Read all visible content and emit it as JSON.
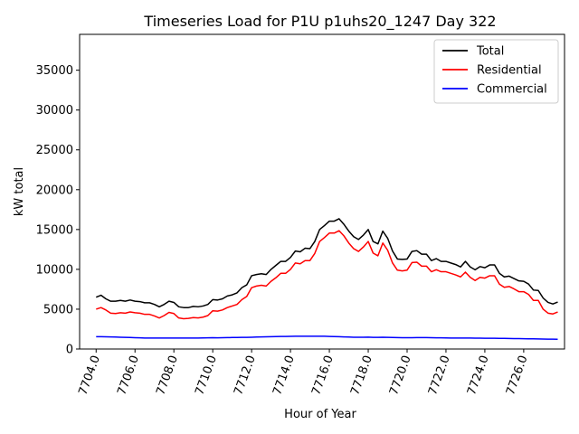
{
  "chart_data": {
    "type": "line",
    "title": "Timeseries Load for P1U p1uhs20_1247  Day 322",
    "xlabel": "Hour of Year",
    "ylabel": "kW total",
    "xlim": [
      7703.15,
      7728.1
    ],
    "ylim": [
      0,
      39500
    ],
    "xticks": [
      7704,
      7706,
      7708,
      7710,
      7712,
      7714,
      7716,
      7718,
      7720,
      7722,
      7724,
      7726
    ],
    "xtick_labels": [
      "7704.0",
      "7706.0",
      "7708.0",
      "7710.0",
      "7712.0",
      "7714.0",
      "7716.0",
      "7718.0",
      "7720.0",
      "7722.0",
      "7724.0",
      "7726.0"
    ],
    "yticks": [
      0,
      5000,
      10000,
      15000,
      20000,
      25000,
      30000,
      35000
    ],
    "ytick_labels": [
      "0",
      "5000",
      "10000",
      "15000",
      "20000",
      "25000",
      "30000",
      "35000"
    ],
    "legend_position": "top-right",
    "x_start": 7704.0,
    "x_step": 0.25,
    "series": [
      {
        "name": "Total",
        "color": "#000000",
        "values": [
          6500,
          6750,
          6300,
          6000,
          6000,
          6100,
          6000,
          6150,
          6000,
          5950,
          5800,
          5800,
          5600,
          5300,
          5600,
          6000,
          5850,
          5300,
          5200,
          5200,
          5350,
          5300,
          5400,
          5600,
          6200,
          6150,
          6300,
          6650,
          6800,
          7050,
          7700,
          8050,
          9200,
          9350,
          9450,
          9350,
          10000,
          10500,
          11000,
          11000,
          11500,
          12300,
          12200,
          12650,
          12600,
          13500,
          15000,
          15500,
          16050,
          16050,
          16350,
          15650,
          14800,
          14100,
          13750,
          14300,
          15000,
          13500,
          13200,
          14800,
          13900,
          12300,
          11300,
          11250,
          11300,
          12250,
          12350,
          11900,
          11900,
          11100,
          11350,
          11000,
          11000,
          10800,
          10600,
          10300,
          11000,
          10300,
          9950,
          10350,
          10200,
          10550,
          10550,
          9500,
          9050,
          9150,
          8850,
          8550,
          8500,
          8150,
          7400,
          7350,
          6400,
          5850,
          5650,
          5900
        ]
      },
      {
        "name": "Residential",
        "color": "#ff0000",
        "values": [
          5000,
          5200,
          4900,
          4500,
          4450,
          4550,
          4500,
          4650,
          4550,
          4500,
          4350,
          4350,
          4150,
          3900,
          4200,
          4600,
          4450,
          3900,
          3800,
          3850,
          3950,
          3900,
          4000,
          4200,
          4800,
          4750,
          4900,
          5200,
          5400,
          5600,
          6200,
          6600,
          7700,
          7900,
          8000,
          7900,
          8500,
          8950,
          9500,
          9500,
          10000,
          10800,
          10700,
          11100,
          11100,
          12000,
          13500,
          14000,
          14550,
          14550,
          14850,
          14200,
          13300,
          12600,
          12250,
          12800,
          13500,
          12050,
          11700,
          13300,
          12400,
          10800,
          9900,
          9800,
          9900,
          10850,
          10900,
          10400,
          10400,
          9700,
          9950,
          9700,
          9700,
          9500,
          9300,
          9050,
          9650,
          9000,
          8600,
          9000,
          8900,
          9200,
          9200,
          8150,
          7750,
          7850,
          7550,
          7200,
          7200,
          6850,
          6100,
          6100,
          5000,
          4500,
          4400,
          4650
        ]
      },
      {
        "name": "Commercial",
        "color": "#0000ff",
        "values": [
          1550,
          1550,
          1530,
          1520,
          1500,
          1480,
          1460,
          1440,
          1420,
          1400,
          1380,
          1380,
          1370,
          1370,
          1370,
          1370,
          1370,
          1370,
          1370,
          1370,
          1380,
          1380,
          1390,
          1400,
          1420,
          1410,
          1420,
          1430,
          1440,
          1450,
          1460,
          1460,
          1480,
          1500,
          1520,
          1530,
          1550,
          1560,
          1570,
          1580,
          1590,
          1600,
          1610,
          1610,
          1610,
          1610,
          1610,
          1600,
          1580,
          1560,
          1540,
          1520,
          1500,
          1480,
          1480,
          1480,
          1490,
          1460,
          1460,
          1470,
          1460,
          1450,
          1430,
          1420,
          1420,
          1420,
          1430,
          1430,
          1430,
          1420,
          1410,
          1400,
          1390,
          1380,
          1370,
          1370,
          1380,
          1370,
          1360,
          1360,
          1350,
          1350,
          1350,
          1340,
          1330,
          1320,
          1310,
          1300,
          1290,
          1280,
          1270,
          1260,
          1250,
          1240,
          1230,
          1220
        ]
      }
    ]
  }
}
